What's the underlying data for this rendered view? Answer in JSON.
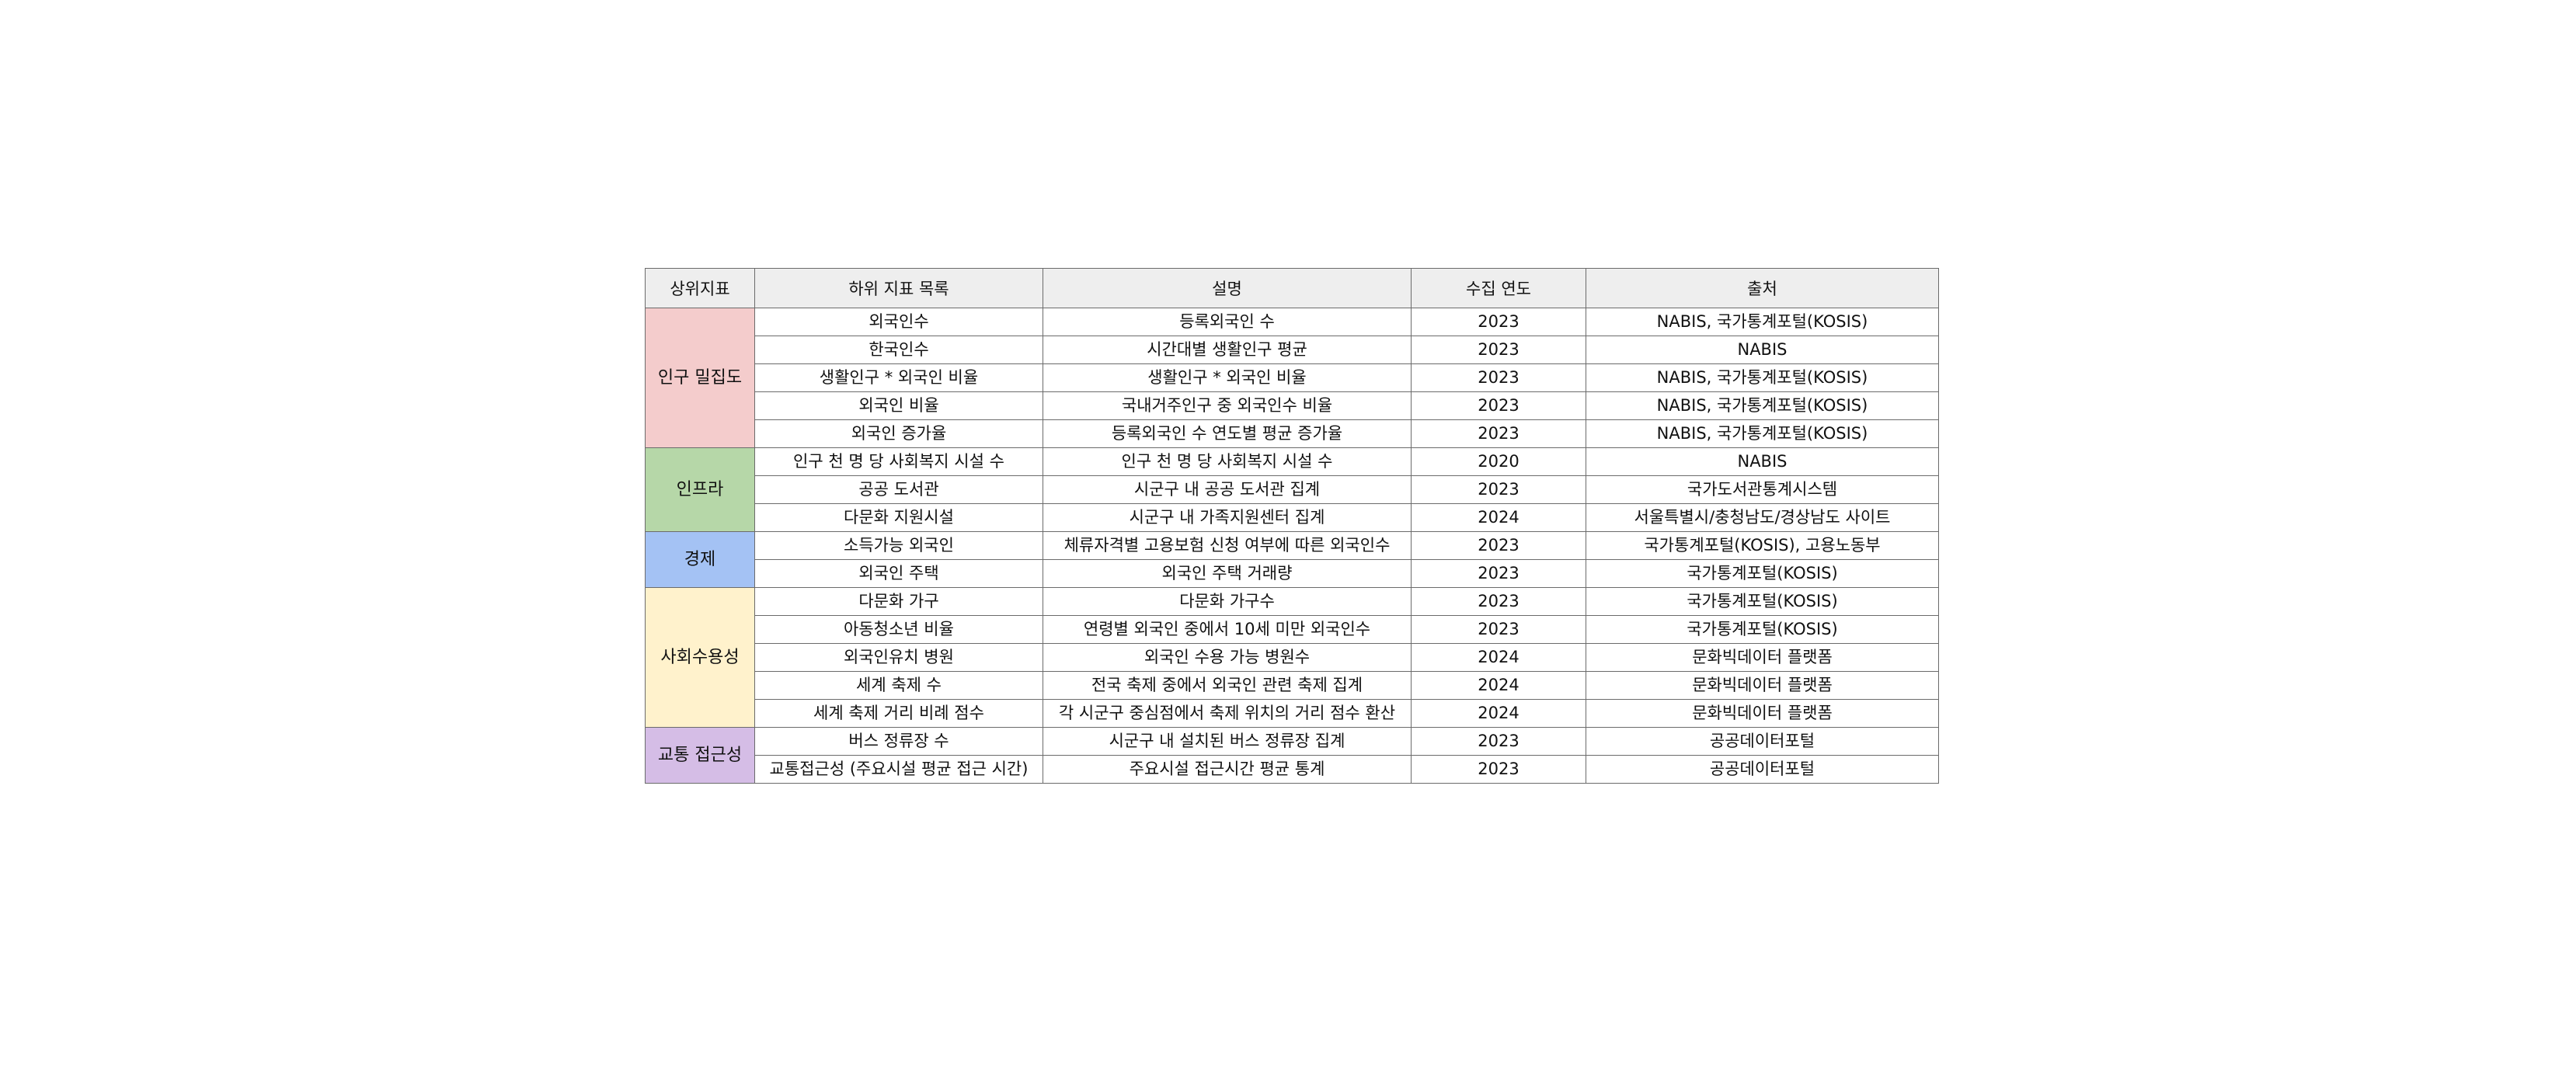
{
  "table": {
    "headers": [
      "상위지표",
      "하위 지표 목록",
      "설명",
      "수집 연도",
      "출처"
    ],
    "groups": [
      {
        "name": "인구 밀집도",
        "color": "#f4cccc",
        "rows": [
          {
            "sub": "외국인수",
            "desc": "등록외국인 수",
            "year": "2023",
            "source": "NABIS, 국가통계포털(KOSIS)"
          },
          {
            "sub": "한국인수",
            "desc": "시간대별 생활인구 평균",
            "year": "2023",
            "source": "NABIS"
          },
          {
            "sub": "생활인구 * 외국인 비율",
            "desc": "생활인구 * 외국인 비율",
            "year": "2023",
            "source": "NABIS, 국가통계포털(KOSIS)"
          },
          {
            "sub": "외국인 비율",
            "desc": "국내거주인구 중 외국인수 비율",
            "year": "2023",
            "source": "NABIS, 국가통계포털(KOSIS)"
          },
          {
            "sub": "외국인 증가율",
            "desc": "등록외국인 수 연도별 평균 증가율",
            "year": "2023",
            "source": "NABIS, 국가통계포털(KOSIS)"
          }
        ]
      },
      {
        "name": "인프라",
        "color": "#b6d7a8",
        "rows": [
          {
            "sub": "인구 천 명 당 사회복지 시설 수",
            "desc": "인구 천 명 당 사회복지 시설 수",
            "year": "2020",
            "source": "NABIS"
          },
          {
            "sub": "공공 도서관",
            "desc": "시군구 내 공공 도서관 집계",
            "year": "2023",
            "source": "국가도서관통계시스템"
          },
          {
            "sub": "다문화 지원시설",
            "desc": "시군구 내 가족지원센터 집계",
            "year": "2024",
            "source": "서울특별시/충청남도/경상남도 사이트"
          }
        ]
      },
      {
        "name": "경제",
        "color": "#a4c2f4",
        "rows": [
          {
            "sub": "소득가능 외국인",
            "desc": "체류자격별 고용보험 신청 여부에 따른 외국인수",
            "year": "2023",
            "source": "국가통계포털(KOSIS), 고용노동부"
          },
          {
            "sub": "외국인 주택",
            "desc": "외국인 주택 거래량",
            "year": "2023",
            "source": "국가통계포털(KOSIS)"
          }
        ]
      },
      {
        "name": "사회수용성",
        "color": "#fff2cc",
        "rows": [
          {
            "sub": "다문화 가구",
            "desc": "다문화 가구수",
            "year": "2023",
            "source": "국가통계포털(KOSIS)"
          },
          {
            "sub": "아동청소년 비율",
            "desc": "연령별 외국인 중에서 10세 미만 외국인수",
            "year": "2023",
            "source": "국가통계포털(KOSIS)"
          },
          {
            "sub": "외국인유치 병원",
            "desc": "외국인 수용 가능 병원수",
            "year": "2024",
            "source": "문화빅데이터 플랫폼"
          },
          {
            "sub": "세계 축제 수",
            "desc": "전국 축제 중에서 외국인 관련 축제 집계",
            "year": "2024",
            "source": "문화빅데이터 플랫폼"
          },
          {
            "sub": "세계 축제 거리 비례 점수",
            "desc": "각 시군구 중심점에서 축제 위치의 거리 점수 환산",
            "year": "2024",
            "source": "문화빅데이터 플랫폼"
          }
        ]
      },
      {
        "name": "교통 접근성",
        "color": "#d5bde6",
        "rows": [
          {
            "sub": "버스 정류장 수",
            "desc": "시군구 내 설치된 버스 정류장 집계",
            "year": "2023",
            "source": "공공데이터포털"
          },
          {
            "sub": "교통접근성 (주요시설 평균 접근 시간)",
            "desc": "주요시설 접근시간 평균 통계",
            "year": "2023",
            "source": "공공데이터포털"
          }
        ]
      }
    ]
  }
}
